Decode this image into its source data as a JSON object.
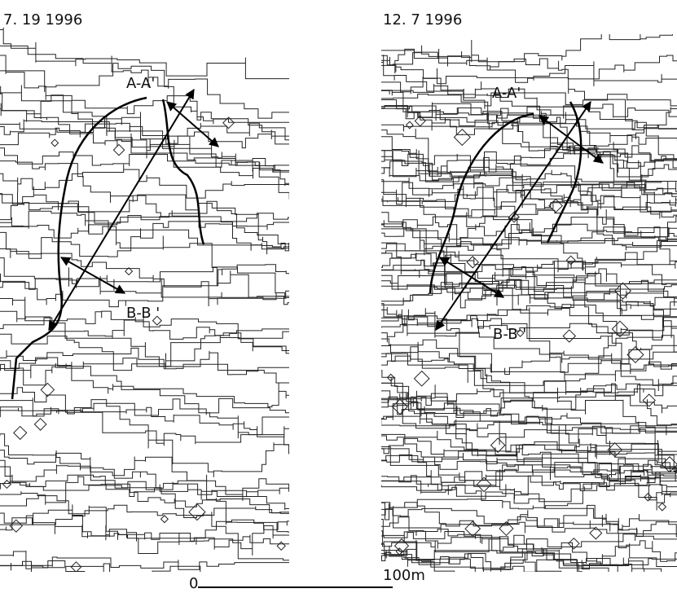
{
  "panels": [
    {
      "date": "7. 19 1996",
      "sections": [
        "A-A'",
        "B-B '"
      ]
    },
    {
      "date": "12. 7 1996",
      "sections": [
        "A-A'",
        "B-B '"
      ]
    }
  ],
  "scale_bar": {
    "start": "0",
    "end": "100m"
  }
}
